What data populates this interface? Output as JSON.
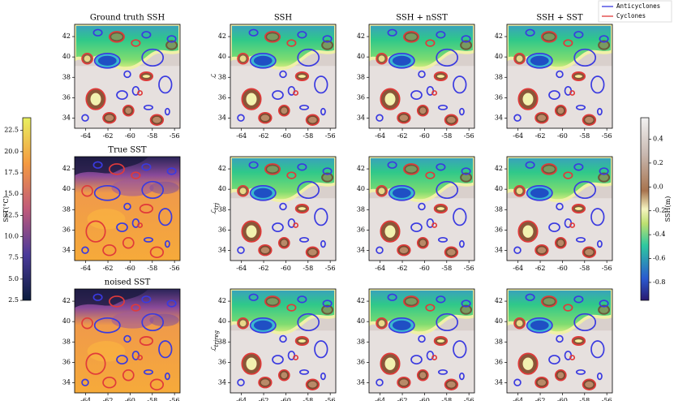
{
  "chart_data": {
    "type": "heatmap-grid",
    "xlim": [
      -65,
      -55.5
    ],
    "ylim": [
      33,
      43.2
    ],
    "xticks": [
      -64,
      -62,
      -60,
      -58,
      -56
    ],
    "yticks": [
      34,
      36,
      38,
      40,
      42
    ],
    "panels": [
      {
        "title": "Ground truth SSH",
        "cmap": "ssh"
      },
      {
        "title": "SSH",
        "ylabel": "ℒ",
        "cmap": "ssh"
      },
      {
        "title": "SSH + nSST",
        "cmap": "ssh"
      },
      {
        "title": "SSH + SST",
        "cmap": "ssh"
      },
      {
        "title": "True SST",
        "cmap": "sst"
      },
      {
        "ylabel": "ℒ",
        "ylabel_sub": "trj",
        "cmap": "ssh"
      },
      {
        "cmap": "ssh"
      },
      {
        "cmap": "ssh"
      },
      {
        "title": "noised SST",
        "cmap": "sst"
      },
      {
        "ylabel": "ℒ",
        "ylabel_sub": "trjreg",
        "cmap": "ssh"
      },
      {
        "cmap": "ssh"
      },
      {
        "cmap": "ssh"
      }
    ],
    "series": [
      {
        "name": "Anticyclones",
        "color": "#3a3ae0"
      },
      {
        "name": "Cyclones",
        "color": "#e03a3a"
      }
    ],
    "colorbars": [
      {
        "label": "SST(°C)",
        "cmap": "sst",
        "lim": [
          2.5,
          24
        ],
        "ticks": [
          2.5,
          {
            "value": 5,
            "label": "5.0"
          },
          7.5,
          {
            "value": 10,
            "label": "10.0"
          },
          12.5,
          {
            "value": 15,
            "label": "15.0"
          },
          17.5,
          {
            "value": 20,
            "label": "20.0"
          },
          22.5
        ]
      },
      {
        "label": "SSH(m)",
        "cmap": "ssh",
        "lim": [
          -0.95,
          0.58
        ],
        "ticks": [
          0.4,
          0.2,
          {
            "value": 0,
            "label": "0.0"
          },
          -0.2,
          -0.4,
          -0.6,
          -0.8
        ]
      }
    ]
  }
}
